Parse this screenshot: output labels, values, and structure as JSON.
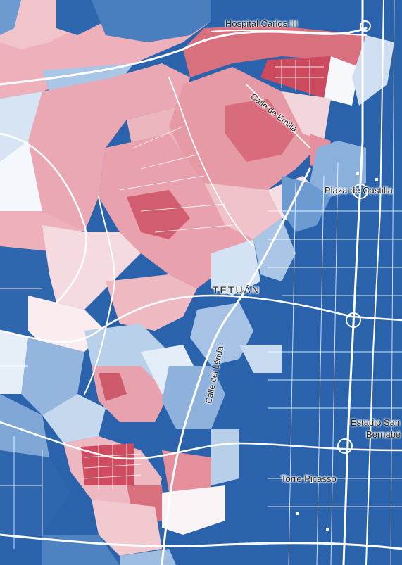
{
  "map": {
    "labels": {
      "hospital": "Hospital Carlos III",
      "emilia": "Calle de Emilia",
      "castilla": "Plaza de Castilla",
      "district": "TETUÁN",
      "lerida": "Calle del Lérida",
      "estadio_line1": "Estadio San",
      "estadio_line2": "Bernabé",
      "picasso": "Torre Picasso"
    },
    "colors": {
      "dark_blue": "#2a63ab",
      "mid_blue": "#6b9bd1",
      "light_blue": "#b5cfe8",
      "pale": "#eef3fa",
      "pale_pink": "#f6dfe3",
      "light_red": "#eeb1bb",
      "mid_red": "#e0848f",
      "dark_red": "#cc4a5e",
      "road": "#ffffff"
    }
  }
}
